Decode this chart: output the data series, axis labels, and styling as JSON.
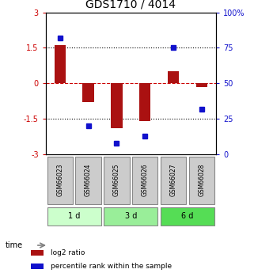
{
  "title": "GDS1710 / 4014",
  "samples": [
    "GSM66023",
    "GSM66024",
    "GSM66025",
    "GSM66026",
    "GSM66027",
    "GSM66028"
  ],
  "log2_ratio": [
    1.6,
    -0.8,
    -1.9,
    -1.6,
    0.5,
    -0.15
  ],
  "percentile_rank": [
    82,
    20,
    8,
    13,
    75,
    32
  ],
  "groups": [
    {
      "label": "1 d",
      "samples": [
        "GSM66023",
        "GSM66024"
      ],
      "color": "#ccffcc"
    },
    {
      "label": "3 d",
      "samples": [
        "GSM66025",
        "GSM66026"
      ],
      "color": "#99ee99"
    },
    {
      "label": "6 d",
      "samples": [
        "GSM66027",
        "GSM66028"
      ],
      "color": "#66dd66"
    }
  ],
  "bar_color": "#aa1111",
  "dot_color": "#1111cc",
  "ylim_left": [
    -3,
    3
  ],
  "ylim_right": [
    0,
    100
  ],
  "yticks_left": [
    -3,
    -1.5,
    0,
    1.5,
    3
  ],
  "ytick_labels_left": [
    "-3",
    "-1.5",
    "0",
    "1.5",
    "3"
  ],
  "yticks_right": [
    0,
    25,
    50,
    75,
    100
  ],
  "ytick_labels_right": [
    "0",
    "25",
    "50",
    "75",
    "100%"
  ],
  "hlines": [
    -1.5,
    0,
    1.5
  ],
  "hline_styles": [
    "dotted",
    "dashed",
    "dotted"
  ],
  "hline_colors": [
    "black",
    "#cc0000",
    "black"
  ],
  "bar_width": 0.4,
  "legend_items": [
    {
      "label": "log2 ratio",
      "color": "#aa1111"
    },
    {
      "label": "percentile rank within the sample",
      "color": "#1111cc"
    }
  ]
}
